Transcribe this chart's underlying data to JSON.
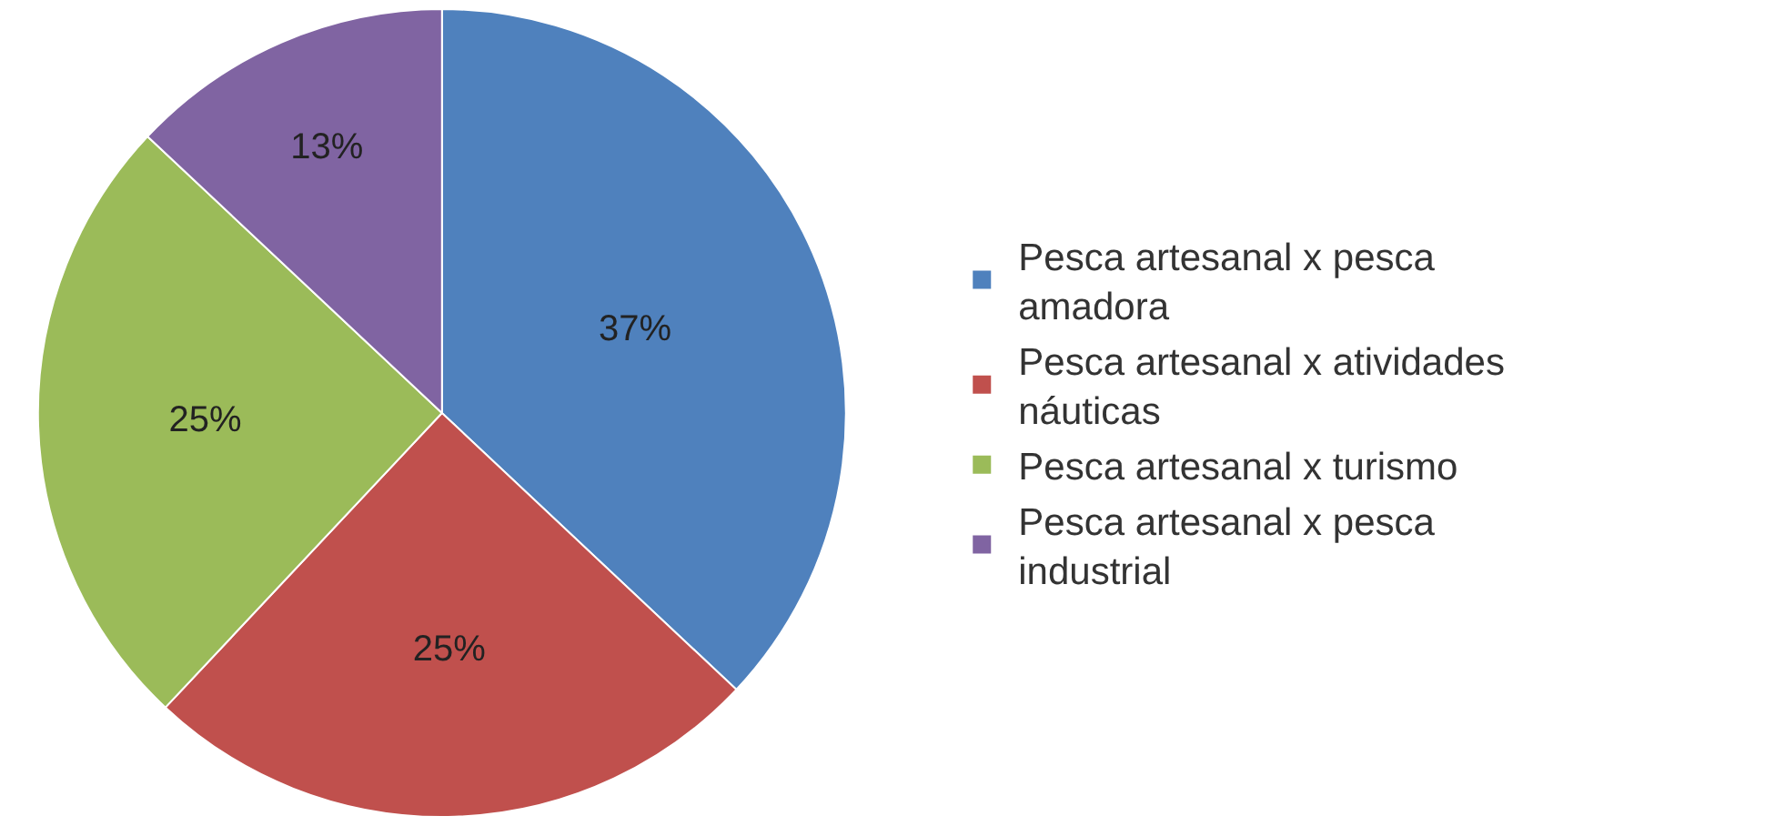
{
  "chart_data": {
    "type": "pie",
    "categories": [
      "Pesca artesanal x pesca amadora",
      "Pesca artesanal x atividades náuticas",
      "Pesca artesanal x turismo",
      "Pesca artesanal x pesca industrial"
    ],
    "values": [
      37,
      25,
      25,
      13
    ],
    "value_labels": [
      "37%",
      "25%",
      "25%",
      "13%"
    ],
    "colors": [
      "#4f81bd",
      "#c0504d",
      "#9bbb59",
      "#8064a2"
    ],
    "legend": "right"
  }
}
